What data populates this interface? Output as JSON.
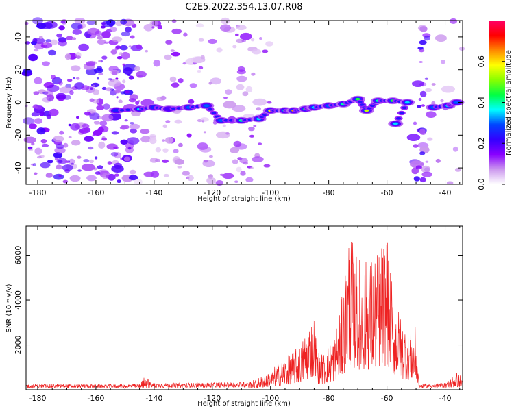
{
  "title": "C2E5.2022.354.13.07.R08",
  "chart_data": [
    {
      "type": "heatmap",
      "xlabel": "Height of straight line (km)",
      "ylabel": "Frequency (Hz)",
      "xlim": [
        -184,
        -34
      ],
      "ylim": [
        -50,
        50
      ],
      "x_ticks": [
        -180,
        -160,
        -140,
        -120,
        -100,
        -80,
        -60,
        -40
      ],
      "y_ticks": [
        -40,
        -20,
        0,
        20,
        40
      ],
      "colorbar": {
        "label": "Normalized spectral amplitude",
        "range": [
          0,
          0.8
        ],
        "ticks": [
          0.0,
          0.2,
          0.4,
          0.6
        ],
        "colormap": [
          "#ffffff",
          "#cc99ee",
          "#8800ff",
          "#3300ff",
          "#0044ff",
          "#00ffff",
          "#00ff44",
          "#88ff00",
          "#ffff00",
          "#ff8800",
          "#ff0000",
          "#ff0066"
        ]
      },
      "noise_regions": [
        {
          "x": [
            -184,
            -146
          ],
          "level": "strong"
        },
        {
          "x": [
            -146,
            -135
          ],
          "level": "medium"
        },
        {
          "x": [
            -135,
            -103
          ],
          "level": "medium"
        },
        {
          "x": [
            -103,
            -100
          ],
          "level": "weak"
        },
        {
          "x": [
            -51,
            -46
          ],
          "level": "strong"
        },
        {
          "x": [
            -46,
            -34
          ],
          "level": "weak"
        }
      ],
      "signal_track": [
        {
          "x": -153,
          "y": -5,
          "amp": 0.25
        },
        {
          "x": -145,
          "y": -4,
          "amp": 0.35
        },
        {
          "x": -140,
          "y": -3,
          "amp": 0.25
        },
        {
          "x": -135,
          "y": -4,
          "amp": 0.2
        },
        {
          "x": -128,
          "y": -3,
          "amp": 0.3
        },
        {
          "x": -122,
          "y": -2,
          "amp": 0.3
        },
        {
          "x": -117,
          "y": -11,
          "amp": 0.3
        },
        {
          "x": -110,
          "y": -11,
          "amp": 0.4
        },
        {
          "x": -104,
          "y": -10,
          "amp": 0.35
        },
        {
          "x": -100,
          "y": -5,
          "amp": 0.6
        },
        {
          "x": -95,
          "y": -5,
          "amp": 0.4
        },
        {
          "x": -92,
          "y": -5,
          "amp": 0.65
        },
        {
          "x": -88,
          "y": -4,
          "amp": 0.45
        },
        {
          "x": -85,
          "y": -3,
          "amp": 0.35
        },
        {
          "x": -80,
          "y": -2,
          "amp": 0.3
        },
        {
          "x": -75,
          "y": -1,
          "amp": 0.4
        },
        {
          "x": -70,
          "y": 2,
          "amp": 0.45
        },
        {
          "x": -67,
          "y": -5,
          "amp": 0.55
        },
        {
          "x": -63,
          "y": 1,
          "amp": 0.4
        },
        {
          "x": -58,
          "y": 1,
          "amp": 0.45
        },
        {
          "x": -53,
          "y": 0,
          "amp": 0.35
        },
        {
          "x": -57,
          "y": -13,
          "amp": 0.35
        },
        {
          "x": -44,
          "y": -3,
          "amp": 0.3
        },
        {
          "x": -39,
          "y": -2,
          "amp": 0.35
        },
        {
          "x": -36,
          "y": 0,
          "amp": 0.3
        }
      ]
    },
    {
      "type": "line",
      "xlabel": "Height of straight line (km)",
      "ylabel": "SNR (10 * v/v)",
      "xlim": [
        -184,
        -34
      ],
      "ylim": [
        0,
        7300
      ],
      "x_ticks": [
        -180,
        -160,
        -140,
        -120,
        -100,
        -80,
        -60,
        -40
      ],
      "y_ticks": [
        2000,
        4000,
        6000
      ],
      "color": "#ee2222",
      "envelope": {
        "x": [
          -184,
          -160,
          -145,
          -143,
          -141,
          -130,
          -110,
          -105,
          -100,
          -95,
          -90,
          -85,
          -84,
          -82,
          -78,
          -75,
          -73,
          -71,
          -68,
          -65,
          -62,
          -60,
          -58,
          -55,
          -52,
          -50,
          -49,
          -45,
          -40,
          -36,
          -34
        ],
        "y": [
          250,
          250,
          250,
          650,
          300,
          300,
          350,
          450,
          900,
          1400,
          2000,
          3600,
          1800,
          1600,
          2500,
          4500,
          7300,
          6200,
          5800,
          6000,
          6500,
          7300,
          4500,
          3200,
          2800,
          2800,
          250,
          250,
          300,
          800,
          600
        ]
      }
    }
  ]
}
